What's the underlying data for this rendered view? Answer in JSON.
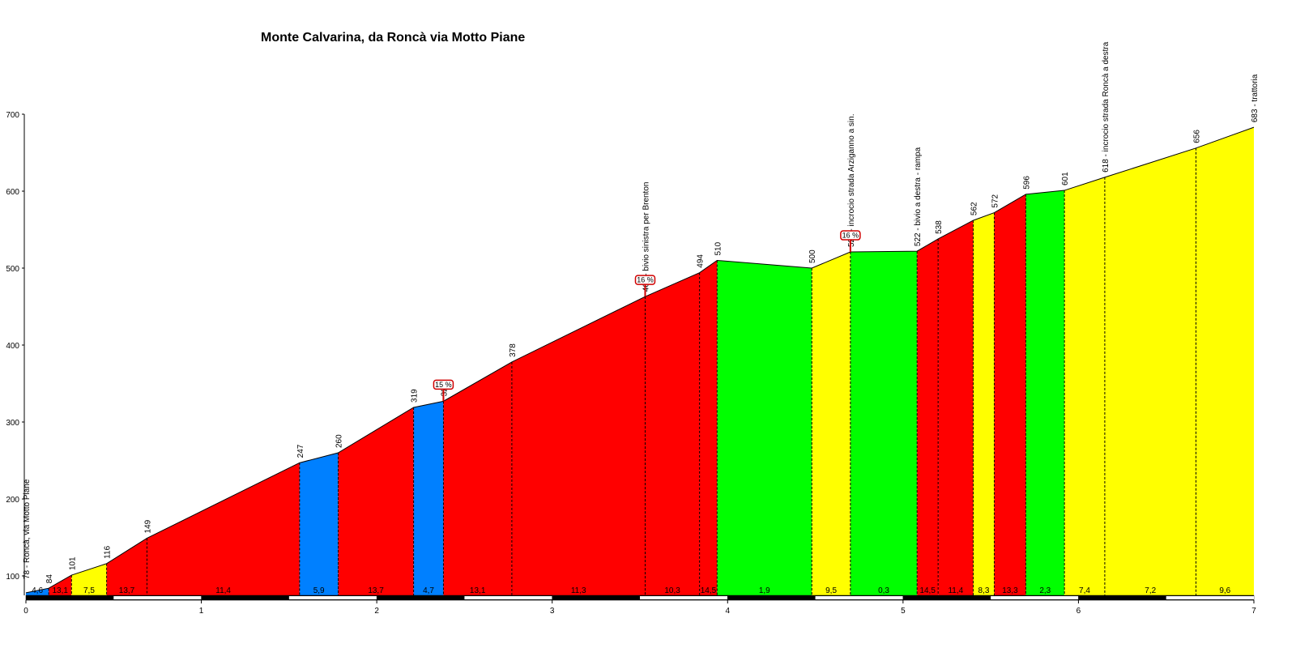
{
  "chart_data": {
    "type": "area",
    "title": "Monte Calvarina, da Roncà via Motto Piane",
    "xlabel": "",
    "ylabel": "",
    "xlim": [
      0,
      7
    ],
    "ylim": [
      70,
      700
    ],
    "x_ticks": [
      0,
      1,
      2,
      3,
      4,
      5,
      6,
      7
    ],
    "y_ticks": [
      100,
      200,
      300,
      400,
      500,
      600,
      700
    ],
    "grid": false,
    "legend": "none",
    "colors": {
      "blue": "#0080ff",
      "red": "#ff0000",
      "yellow": "#ffff00",
      "green": "#00ff00"
    },
    "points": [
      {
        "km": 0.0,
        "alt": 78,
        "label": "78 - Roncà, via Motto Piane"
      },
      {
        "km": 0.13,
        "alt": 84,
        "label": "84"
      },
      {
        "km": 0.26,
        "alt": 101,
        "label": "101"
      },
      {
        "km": 0.46,
        "alt": 116,
        "label": "116"
      },
      {
        "km": 0.69,
        "alt": 149,
        "label": "149"
      },
      {
        "km": 1.56,
        "alt": 247,
        "label": "247"
      },
      {
        "km": 1.78,
        "alt": 260,
        "label": "260"
      },
      {
        "km": 2.21,
        "alt": 319,
        "label": "319"
      },
      {
        "km": 2.38,
        "alt": 327,
        "label": "327"
      },
      {
        "km": 2.77,
        "alt": 378,
        "label": "378"
      },
      {
        "km": 3.53,
        "alt": 463,
        "label": "463 - bivio sinistra per Brenton"
      },
      {
        "km": 3.84,
        "alt": 494,
        "label": "494"
      },
      {
        "km": 3.94,
        "alt": 510,
        "label": "510"
      },
      {
        "km": 4.48,
        "alt": 500,
        "label": "500"
      },
      {
        "km": 4.7,
        "alt": 521,
        "label": "521 - incrocio strada Arziganno a sin."
      },
      {
        "km": 5.08,
        "alt": 522,
        "label": "522 - bivio a destra - rampa"
      },
      {
        "km": 5.2,
        "alt": 538,
        "label": "538"
      },
      {
        "km": 5.4,
        "alt": 562,
        "label": "562"
      },
      {
        "km": 5.52,
        "alt": 572,
        "label": "572"
      },
      {
        "km": 5.7,
        "alt": 596,
        "label": "596"
      },
      {
        "km": 5.92,
        "alt": 601,
        "label": "601"
      },
      {
        "km": 6.15,
        "alt": 618,
        "label": "618 - incrocio strada Roncà a destra"
      },
      {
        "km": 6.67,
        "alt": 656,
        "label": "656"
      },
      {
        "km": 7.0,
        "alt": 683,
        "label": "683 - trattoria"
      }
    ],
    "segments": [
      {
        "gradient": "4,6",
        "color": "blue"
      },
      {
        "gradient": "13,1",
        "color": "red"
      },
      {
        "gradient": "7,5",
        "color": "yellow"
      },
      {
        "gradient": "13,7",
        "color": "red"
      },
      {
        "gradient": "11,4",
        "color": "red"
      },
      {
        "gradient": "5,9",
        "color": "blue"
      },
      {
        "gradient": "13,7",
        "color": "red"
      },
      {
        "gradient": "4,7",
        "color": "blue"
      },
      {
        "gradient": "13,1",
        "color": "red"
      },
      {
        "gradient": "11,3",
        "color": "red"
      },
      {
        "gradient": "10,3",
        "color": "red"
      },
      {
        "gradient": "14,5",
        "color": "red"
      },
      {
        "gradient": "1,9",
        "color": "green"
      },
      {
        "gradient": "9,5",
        "color": "yellow"
      },
      {
        "gradient": "0,3",
        "color": "green"
      },
      {
        "gradient": "14,5",
        "color": "red"
      },
      {
        "gradient": "11,4",
        "color": "red"
      },
      {
        "gradient": "8,3",
        "color": "yellow"
      },
      {
        "gradient": "13,3",
        "color": "red"
      },
      {
        "gradient": "2,3",
        "color": "green"
      },
      {
        "gradient": "7,4",
        "color": "yellow"
      },
      {
        "gradient": "7,2",
        "color": "yellow"
      },
      {
        "gradient": "9,6",
        "color": "yellow"
      }
    ],
    "max_gradient_markers": [
      {
        "km": 2.38,
        "alt": 327,
        "label": "15 %"
      },
      {
        "km": 3.53,
        "alt": 463,
        "label": "16 %"
      },
      {
        "km": 4.7,
        "alt": 521,
        "label": "16 %"
      }
    ]
  }
}
